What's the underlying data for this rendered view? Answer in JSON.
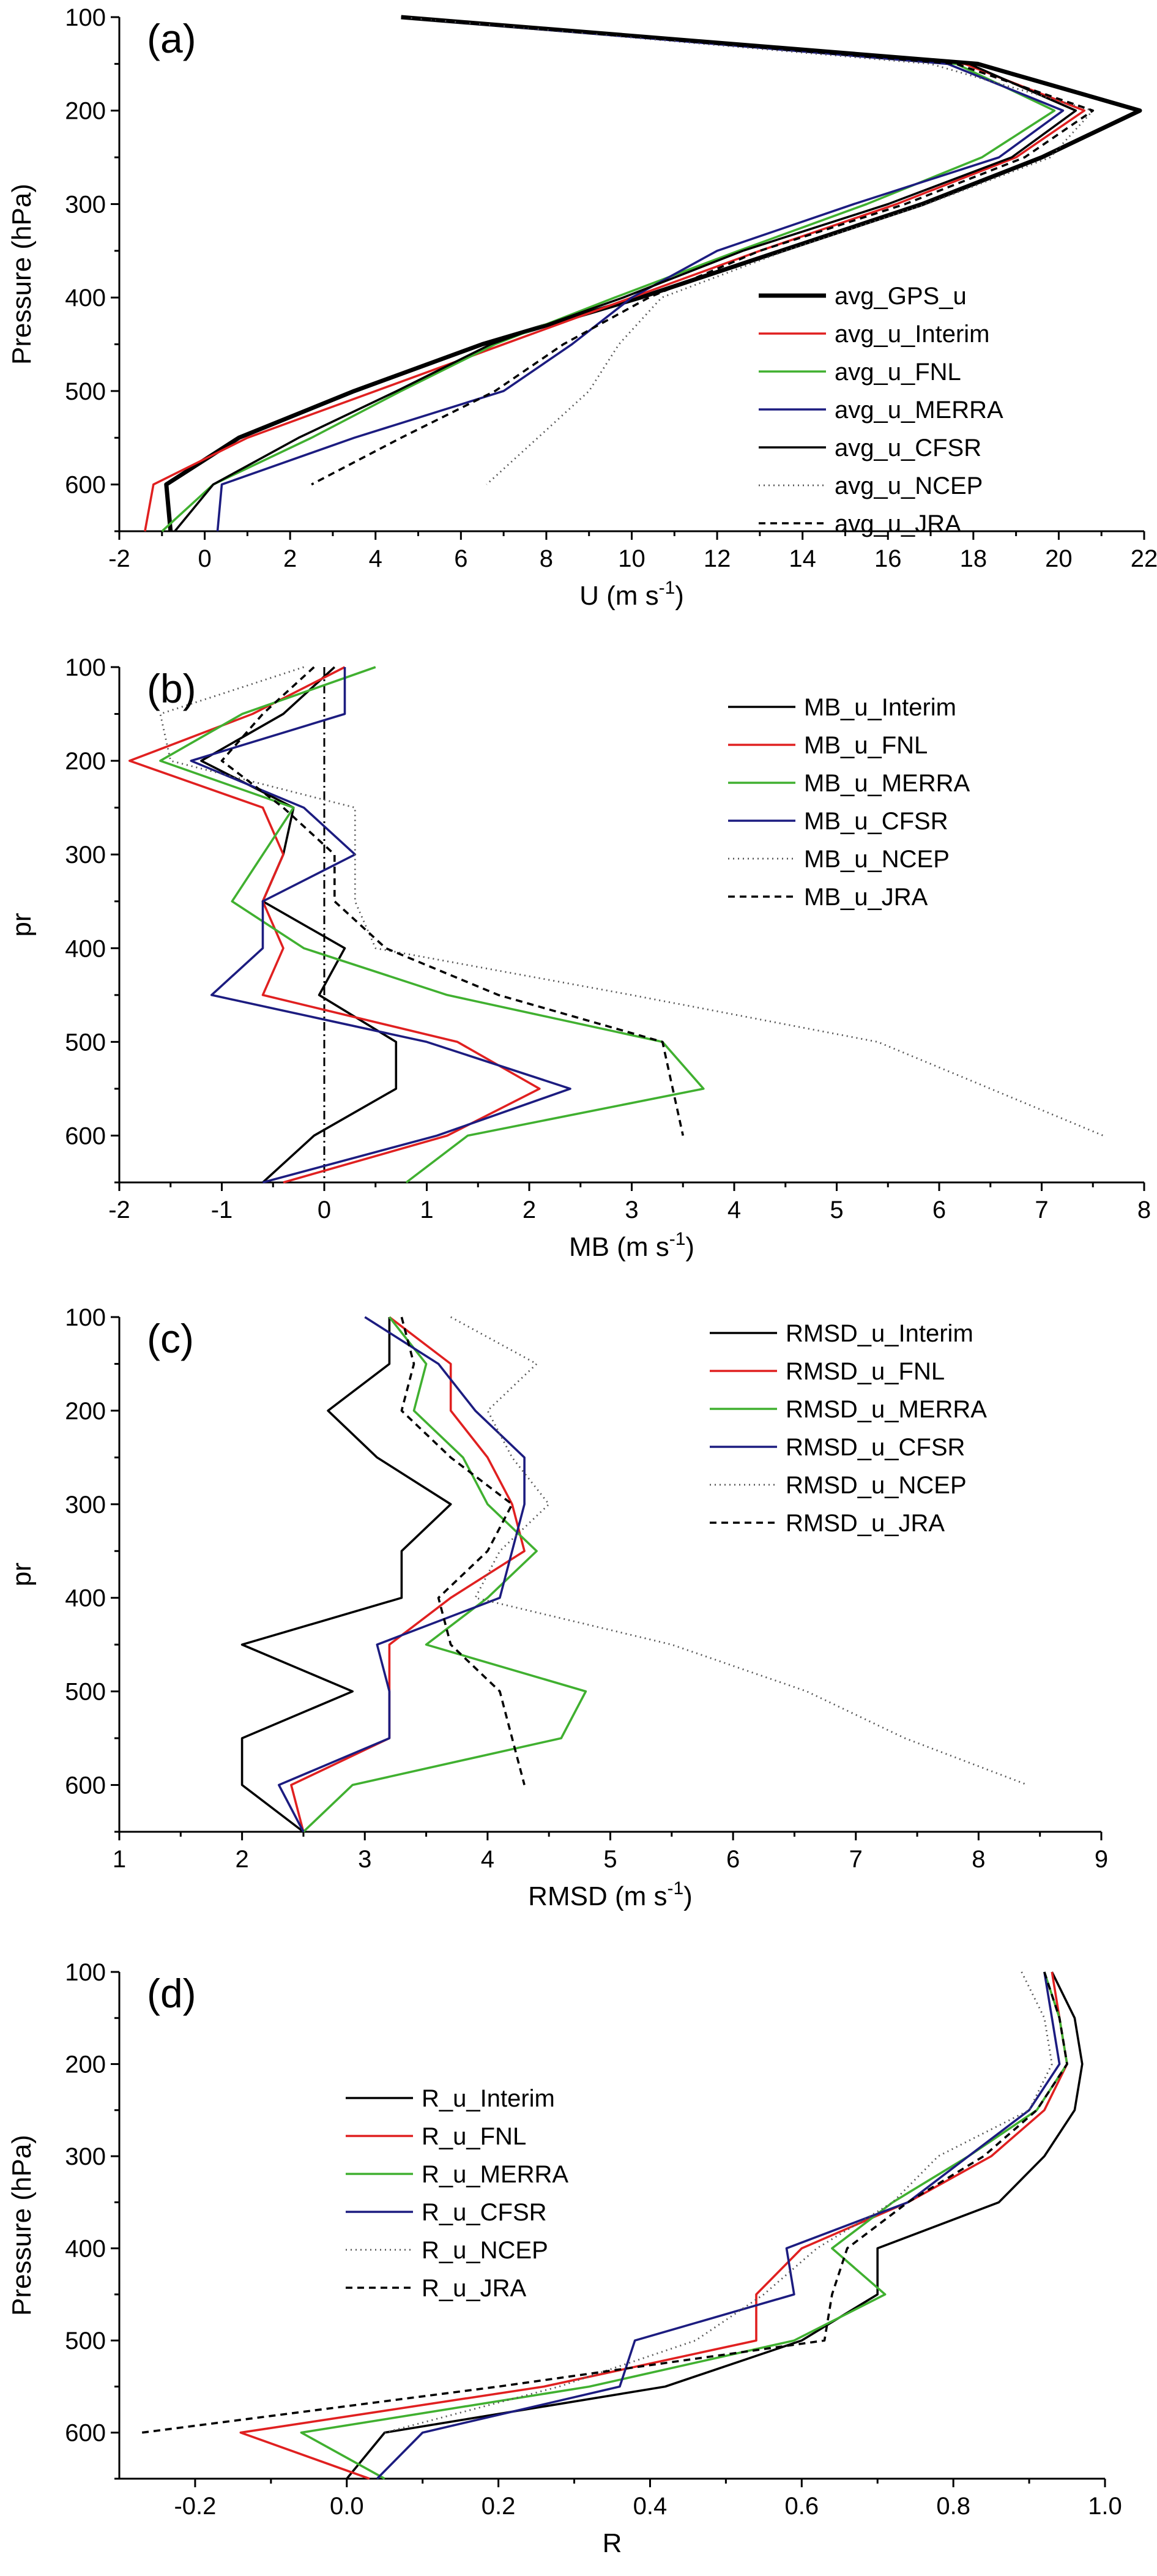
{
  "chart_data": [
    {
      "panel": "(a)",
      "type": "line",
      "xlabel": "U (m s",
      "xlabel_sup": "-1",
      "xlabel_end": ")",
      "ylabel": "Pressure (hPa)",
      "xlim": [
        -2,
        22
      ],
      "ylim": [
        100,
        650
      ],
      "y_inverted": true,
      "xticks": [
        -2,
        0,
        2,
        4,
        6,
        8,
        10,
        12,
        14,
        16,
        18,
        20,
        22
      ],
      "yticks": [
        100,
        200,
        300,
        400,
        500,
        600
      ],
      "legend_position": "bottom-right",
      "series": [
        {
          "name": "avg_GPS_u",
          "color": "#000000",
          "style": "thick",
          "y": [
            100,
            150,
            200,
            250,
            300,
            350,
            400,
            450,
            500,
            550,
            600,
            650
          ],
          "x": [
            4.6,
            18.1,
            21.9,
            19.6,
            16.8,
            13.5,
            10.2,
            6.5,
            3.5,
            0.8,
            -0.9,
            -0.8
          ]
        },
        {
          "name": "avg_u_Interim",
          "color": "#e02020",
          "style": "solid",
          "y": [
            100,
            150,
            200,
            250,
            300,
            350,
            400,
            450,
            500,
            550,
            600,
            650
          ],
          "x": [
            4.6,
            17.8,
            20.6,
            19.0,
            16.2,
            13.0,
            10.0,
            7.0,
            4.0,
            1.0,
            -1.2,
            -1.4
          ]
        },
        {
          "name": "avg_u_FNL",
          "color": "#40b030",
          "style": "solid",
          "y": [
            100,
            150,
            200,
            250,
            300,
            350,
            400,
            450,
            500,
            550,
            600,
            650
          ],
          "x": [
            4.6,
            17.6,
            19.9,
            18.2,
            15.5,
            12.5,
            9.6,
            6.8,
            4.6,
            2.5,
            0.2,
            -1.0
          ]
        },
        {
          "name": "avg_u_MERRA",
          "color": "#1c1c80",
          "style": "solid",
          "y": [
            100,
            150,
            200,
            250,
            300,
            350,
            400,
            450,
            500,
            550,
            600,
            650
          ],
          "x": [
            4.6,
            17.4,
            20.1,
            18.6,
            15.2,
            12.0,
            10.0,
            8.6,
            7.0,
            3.5,
            0.4,
            0.3
          ]
        },
        {
          "name": "avg_u_CFSR",
          "color": "#000000",
          "style": "solid",
          "y": [
            100,
            150,
            200,
            250,
            300,
            350,
            400,
            450,
            500,
            550,
            600,
            650
          ],
          "x": [
            4.6,
            17.9,
            20.4,
            18.9,
            16.0,
            12.6,
            9.8,
            6.7,
            4.5,
            2.2,
            0.2,
            -0.7
          ]
        },
        {
          "name": "avg_u_NCEP",
          "color": "#555555",
          "style": "dotted",
          "y": [
            100,
            150,
            200,
            250,
            300,
            350,
            400,
            450,
            500,
            550,
            600
          ],
          "x": [
            4.6,
            17.0,
            20.8,
            19.8,
            16.9,
            13.6,
            10.7,
            9.7,
            9.0,
            7.8,
            6.6
          ]
        },
        {
          "name": "avg_u_JRA",
          "color": "#000000",
          "style": "dashed",
          "y": [
            100,
            150,
            200,
            250,
            300,
            350,
            400,
            450,
            500,
            550,
            600
          ],
          "x": [
            4.6,
            17.6,
            20.8,
            19.2,
            16.4,
            13.0,
            10.4,
            8.4,
            6.8,
            4.6,
            2.5
          ]
        }
      ]
    },
    {
      "panel": "(b)",
      "type": "line",
      "xlabel": "MB (m s",
      "xlabel_sup": "-1",
      "xlabel_end": ")",
      "ylabel": "pr",
      "xlim": [
        -2,
        8
      ],
      "ylim": [
        100,
        650
      ],
      "y_inverted": true,
      "xticks": [
        -2,
        -1,
        0,
        1,
        2,
        3,
        4,
        5,
        6,
        7,
        8
      ],
      "yticks": [
        100,
        200,
        300,
        400,
        500,
        600
      ],
      "zero_line": true,
      "legend_position": "top-right",
      "series": [
        {
          "name": "MB_u_Interim",
          "color": "#000000",
          "style": "solid",
          "y": [
            100,
            150,
            200,
            250,
            300,
            350,
            400,
            450,
            500,
            550,
            600,
            650
          ],
          "x": [
            0.1,
            -0.4,
            -1.2,
            -0.3,
            -0.4,
            -0.6,
            0.2,
            -0.05,
            0.7,
            0.7,
            -0.1,
            -0.6
          ]
        },
        {
          "name": "MB_u_FNL",
          "color": "#e02020",
          "style": "solid",
          "y": [
            100,
            150,
            200,
            250,
            300,
            350,
            400,
            450,
            500,
            550,
            600,
            650
          ],
          "x": [
            0.2,
            -0.7,
            -1.9,
            -0.6,
            -0.4,
            -0.6,
            -0.4,
            -0.6,
            1.3,
            2.1,
            1.2,
            -0.4
          ]
        },
        {
          "name": "MB_u_MERRA",
          "color": "#40b030",
          "style": "solid",
          "y": [
            100,
            150,
            200,
            250,
            300,
            350,
            400,
            450,
            500,
            550,
            600,
            650
          ],
          "x": [
            0.5,
            -0.8,
            -1.6,
            -0.3,
            -0.6,
            -0.9,
            -0.2,
            1.2,
            3.3,
            3.7,
            1.4,
            0.8
          ]
        },
        {
          "name": "MB_u_CFSR",
          "color": "#1c1c80",
          "style": "solid",
          "y": [
            100,
            150,
            200,
            250,
            300,
            350,
            400,
            450,
            500,
            550,
            600,
            650
          ],
          "x": [
            0.2,
            0.2,
            -1.3,
            -0.2,
            0.3,
            -0.6,
            -0.6,
            -1.1,
            1.0,
            2.4,
            1.1,
            -0.6
          ]
        },
        {
          "name": "MB_u_NCEP",
          "color": "#555555",
          "style": "dotted",
          "y": [
            100,
            150,
            200,
            250,
            300,
            350,
            400,
            450,
            500,
            550,
            600
          ],
          "x": [
            -0.2,
            -1.6,
            -1.5,
            0.3,
            0.3,
            0.3,
            0.5,
            3.0,
            5.4,
            6.5,
            7.6
          ]
        },
        {
          "name": "MB_u_JRA",
          "color": "#000000",
          "style": "dashed",
          "y": [
            100,
            150,
            200,
            250,
            300,
            350,
            400,
            450,
            500,
            550,
            600
          ],
          "x": [
            -0.1,
            -0.6,
            -1.0,
            -0.4,
            0.1,
            0.1,
            0.6,
            1.7,
            3.3,
            3.4,
            3.5
          ]
        }
      ]
    },
    {
      "panel": "(c)",
      "type": "line",
      "xlabel": "RMSD (m s",
      "xlabel_sup": "-1",
      "xlabel_end": ")",
      "ylabel": "pr",
      "xlim": [
        1,
        9
      ],
      "ylim": [
        100,
        650
      ],
      "y_inverted": true,
      "xticks": [
        1,
        2,
        3,
        4,
        5,
        6,
        7,
        8,
        9
      ],
      "yticks": [
        100,
        200,
        300,
        400,
        500,
        600
      ],
      "legend_position": "top-right",
      "series": [
        {
          "name": "RMSD_u_Interim",
          "color": "#000000",
          "style": "solid",
          "y": [
            100,
            150,
            200,
            250,
            300,
            350,
            400,
            450,
            500,
            550,
            600,
            650
          ],
          "x": [
            3.2,
            3.2,
            2.7,
            3.1,
            3.7,
            3.3,
            3.3,
            2.0,
            2.9,
            2.0,
            2.0,
            2.5
          ]
        },
        {
          "name": "RMSD_u_FNL",
          "color": "#e02020",
          "style": "solid",
          "y": [
            100,
            150,
            200,
            250,
            300,
            350,
            400,
            450,
            500,
            550,
            600,
            650
          ],
          "x": [
            3.2,
            3.7,
            3.7,
            4.0,
            4.2,
            4.3,
            3.7,
            3.2,
            3.2,
            3.2,
            2.4,
            2.5
          ]
        },
        {
          "name": "RMSD_u_MERRA",
          "color": "#40b030",
          "style": "solid",
          "y": [
            100,
            150,
            200,
            250,
            300,
            350,
            400,
            450,
            500,
            550,
            600,
            650
          ],
          "x": [
            3.2,
            3.5,
            3.4,
            3.8,
            4.0,
            4.4,
            4.0,
            3.5,
            4.8,
            4.6,
            2.9,
            2.5
          ]
        },
        {
          "name": "RMSD_u_CFSR",
          "color": "#1c1c80",
          "style": "solid",
          "y": [
            100,
            150,
            200,
            250,
            300,
            350,
            400,
            450,
            500,
            550,
            600,
            650
          ],
          "x": [
            3.0,
            3.6,
            3.9,
            4.3,
            4.3,
            4.2,
            4.1,
            3.1,
            3.2,
            3.2,
            2.3,
            2.5
          ]
        },
        {
          "name": "RMSD_u_NCEP",
          "color": "#555555",
          "style": "dotted",
          "y": [
            100,
            150,
            200,
            250,
            300,
            350,
            400,
            450,
            500,
            550,
            600
          ],
          "x": [
            3.7,
            4.4,
            4.0,
            4.2,
            4.5,
            4.1,
            3.9,
            5.5,
            6.6,
            7.4,
            8.4
          ]
        },
        {
          "name": "RMSD_u_JRA",
          "color": "#000000",
          "style": "dashed",
          "y": [
            100,
            150,
            200,
            250,
            300,
            350,
            400,
            450,
            500,
            550,
            600
          ],
          "x": [
            3.3,
            3.4,
            3.3,
            3.7,
            4.2,
            4.0,
            3.6,
            3.7,
            4.1,
            4.2,
            4.3
          ]
        }
      ]
    },
    {
      "panel": "(d)",
      "type": "line",
      "xlabel": "R",
      "xlabel_sup": "",
      "xlabel_end": "",
      "ylabel": "Pressure (hPa)",
      "xlim": [
        -0.3,
        1.0
      ],
      "ylim": [
        100,
        650
      ],
      "y_inverted": true,
      "xticks": [
        -0.2,
        0.0,
        0.2,
        0.4,
        0.6,
        0.8,
        1.0
      ],
      "xtick_labels": [
        "-0.2",
        "0.0",
        "0.2",
        "0.4",
        "0.6",
        "0.8",
        "1.0"
      ],
      "yticks": [
        100,
        200,
        300,
        400,
        500,
        600
      ],
      "legend_position": "middle-left",
      "series": [
        {
          "name": "R_u_Interim",
          "color": "#000000",
          "style": "solid",
          "y": [
            100,
            150,
            200,
            250,
            300,
            350,
            400,
            450,
            500,
            550,
            600,
            650
          ],
          "x": [
            0.93,
            0.96,
            0.97,
            0.96,
            0.92,
            0.86,
            0.7,
            0.7,
            0.6,
            0.42,
            0.05,
            0.0
          ]
        },
        {
          "name": "R_u_FNL",
          "color": "#e02020",
          "style": "solid",
          "y": [
            100,
            150,
            200,
            250,
            300,
            350,
            400,
            450,
            500,
            550,
            600,
            650
          ],
          "x": [
            0.93,
            0.94,
            0.95,
            0.92,
            0.85,
            0.74,
            0.6,
            0.54,
            0.54,
            0.26,
            -0.14,
            0.03
          ]
        },
        {
          "name": "R_u_MERRA",
          "color": "#40b030",
          "style": "solid",
          "y": [
            100,
            150,
            200,
            250,
            300,
            350,
            400,
            450,
            500,
            550,
            600,
            650
          ],
          "x": [
            0.92,
            0.94,
            0.95,
            0.91,
            0.82,
            0.72,
            0.64,
            0.71,
            0.59,
            0.32,
            -0.06,
            0.05
          ]
        },
        {
          "name": "R_u_CFSR",
          "color": "#1c1c80",
          "style": "solid",
          "y": [
            100,
            150,
            200,
            250,
            300,
            350,
            400,
            450,
            500,
            550,
            600,
            650
          ],
          "x": [
            0.92,
            0.93,
            0.94,
            0.9,
            0.82,
            0.74,
            0.58,
            0.59,
            0.38,
            0.36,
            0.1,
            0.04
          ]
        },
        {
          "name": "R_u_NCEP",
          "color": "#555555",
          "style": "dotted",
          "y": [
            100,
            150,
            200,
            250,
            300,
            350,
            400,
            450,
            500,
            550,
            600
          ],
          "x": [
            0.89,
            0.92,
            0.93,
            0.9,
            0.78,
            0.72,
            0.62,
            0.55,
            0.46,
            0.28,
            0.05
          ]
        },
        {
          "name": "R_u_JRA",
          "color": "#000000",
          "style": "dashed",
          "y": [
            100,
            150,
            200,
            250,
            300,
            350,
            400,
            450,
            500,
            550,
            600
          ],
          "x": [
            0.92,
            0.94,
            0.95,
            0.91,
            0.84,
            0.74,
            0.66,
            0.64,
            0.63,
            0.2,
            -0.27
          ]
        }
      ]
    }
  ]
}
